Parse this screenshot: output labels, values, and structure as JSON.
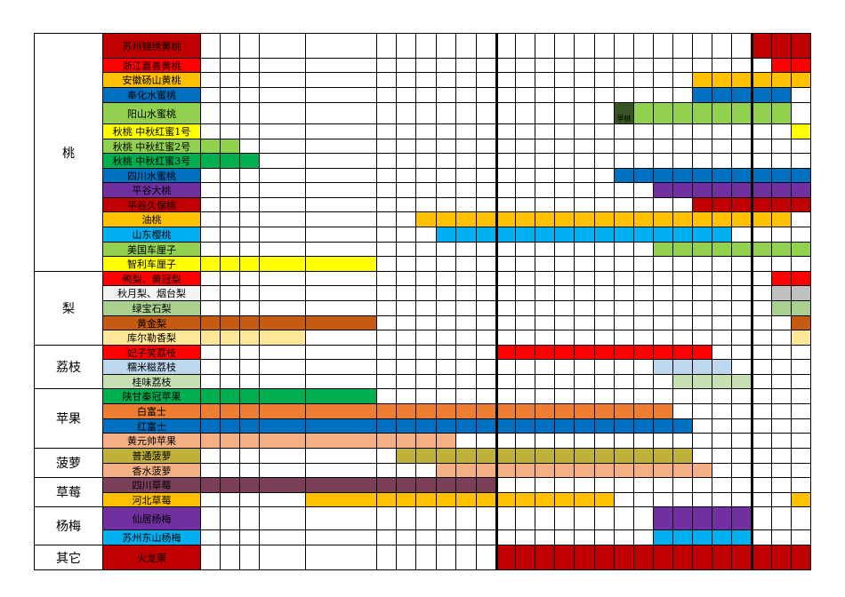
{
  "groups": [
    {
      "label": "桃",
      "rows": [
        {
          "name": "苏州锦绣黄桃",
          "color": "#c00000"
        },
        {
          "name": "浙江嘉善黄桃",
          "color": "#ff0000"
        },
        {
          "name": "安徽砀山黄桃",
          "color": "#ffc000"
        },
        {
          "name": "奉化水蜜桃",
          "color": "#0070c0"
        },
        {
          "name": "阳山水蜜桃",
          "color": "#92d050",
          "note": "早桃",
          "note_color": "#375623"
        },
        {
          "name": "秋桃 中秋红蜜1号",
          "color": "#ffff00"
        },
        {
          "name": "秋桃 中秋红蜜2号",
          "color": "#92d050"
        },
        {
          "name": "秋桃 中秋红蜜3号",
          "color": "#00b050"
        },
        {
          "name": "四川水蜜桃",
          "color": "#0070c0"
        },
        {
          "name": "平谷大桃",
          "color": "#7030a0"
        },
        {
          "name": "平谷久保桃",
          "color": "#c00000"
        },
        {
          "name": "油桃",
          "color": "#ffc000"
        },
        {
          "name": "山东樱桃",
          "color": "#00b0f0"
        },
        {
          "name": "美国车厘子",
          "color": "#92d050"
        },
        {
          "name": "智利车厘子",
          "color": "#ffff00"
        }
      ]
    },
    {
      "label": "梨",
      "rows": [
        {
          "name": "鸭梨、黄冠梨",
          "color": "#ff0000"
        },
        {
          "name": "秋月梨、烟台梨",
          "color": "#f2f2f2",
          "bar_color": "#c0c0c0"
        },
        {
          "name": "绿宝石梨",
          "color": "#a9d08e"
        },
        {
          "name": "黄金梨",
          "color": "#c55a11"
        },
        {
          "name": "库尔勒香梨",
          "color": "#ffe699"
        }
      ]
    },
    {
      "label": "荔枝",
      "rows": [
        {
          "name": "妃子笑荔枝",
          "color": "#ff0000"
        },
        {
          "name": "糯米糍荔枝",
          "color": "#bdd7ee"
        },
        {
          "name": "桂味荔枝",
          "color": "#c6e0b4"
        }
      ]
    },
    {
      "label": "苹果",
      "rows": [
        {
          "name": "陕甘秦冠苹果",
          "color": "#00b050"
        },
        {
          "name": "白富士",
          "color": "#ed7d31"
        },
        {
          "name": "红富士",
          "color": "#0070c0"
        },
        {
          "name": "黄元帅苹果",
          "color": "#f4b084"
        }
      ]
    },
    {
      "label": "菠萝",
      "rows": [
        {
          "name": "普通菠萝",
          "color": "#bfb03a"
        },
        {
          "name": "香水菠萝",
          "color": "#f4b084"
        }
      ]
    },
    {
      "label": "草莓",
      "rows": [
        {
          "name": "四川草莓",
          "color": "#7b3f5a"
        },
        {
          "name": "河北草莓",
          "color": "#ffc000"
        }
      ]
    },
    {
      "label": "杨梅",
      "rows": [
        {
          "name": "仙居杨梅",
          "color": "#7030a0"
        },
        {
          "name": "苏州东山杨梅",
          "color": "#00b0f0"
        }
      ]
    },
    {
      "label": "其它",
      "rows": [
        {
          "name": "火龙果",
          "color": "#c00000"
        }
      ]
    }
  ]
}
